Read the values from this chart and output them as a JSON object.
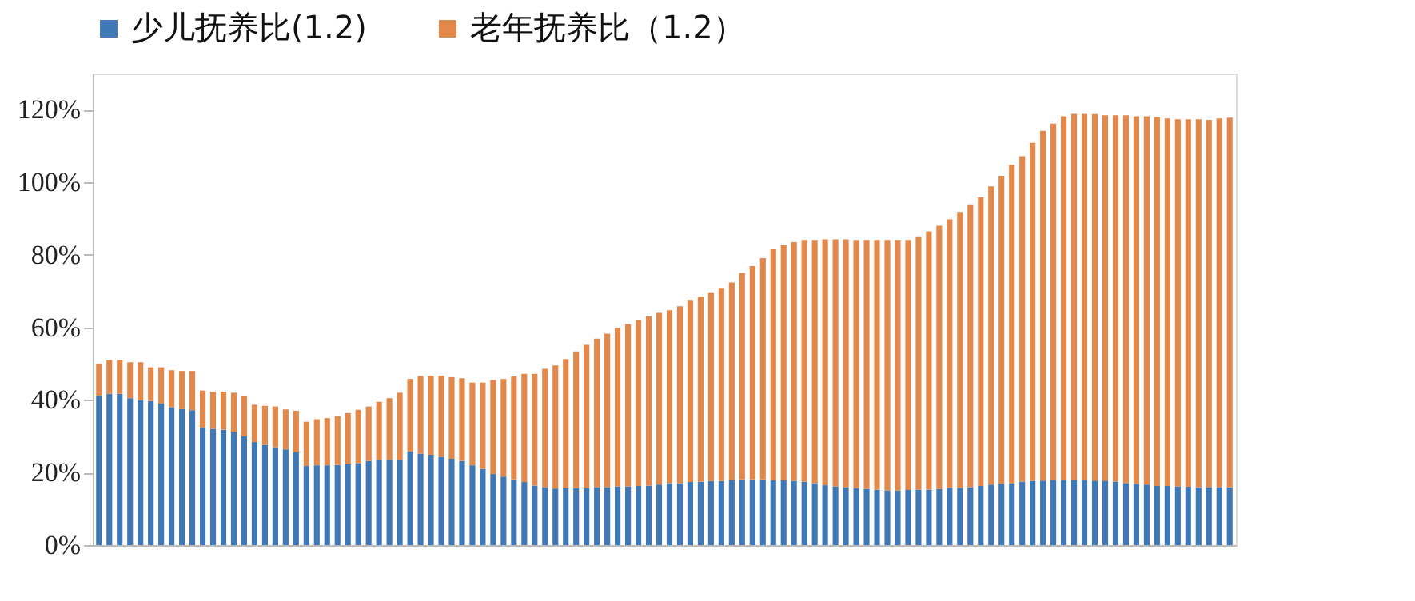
{
  "chart_data": {
    "type": "bar",
    "stacked": true,
    "legend": "top",
    "grid": false,
    "tick_labels": "y",
    "categories": [
      null,
      null,
      null,
      null,
      null,
      null,
      null,
      null,
      null,
      null,
      null,
      null,
      null,
      null,
      null,
      null,
      null,
      null,
      null,
      null,
      null,
      null,
      null,
      null,
      null,
      null,
      null,
      null,
      null,
      null,
      null,
      null,
      null,
      null,
      null,
      null,
      null,
      null,
      null,
      null,
      null,
      null,
      null,
      null,
      null,
      null,
      null,
      null,
      null,
      null,
      null,
      null,
      null,
      null,
      null,
      null,
      null,
      null,
      null,
      null,
      null,
      null,
      null,
      null,
      null,
      null,
      null,
      null,
      null,
      null,
      null,
      null,
      null,
      null,
      null,
      null,
      null,
      null,
      null,
      null,
      null,
      null,
      null,
      null,
      null,
      null,
      null,
      null,
      null,
      null,
      null,
      null,
      null,
      null,
      null,
      null,
      null,
      null,
      null,
      null,
      null,
      null,
      null,
      null,
      null,
      null,
      null,
      null,
      null,
      null
    ],
    "ylim": [
      0,
      130
    ],
    "yticks": [
      {
        "value": 0,
        "label": "0%"
      },
      {
        "value": 20,
        "label": "20%"
      },
      {
        "value": 40,
        "label": "40%"
      },
      {
        "value": 60,
        "label": "60%"
      },
      {
        "value": 80,
        "label": "80%"
      },
      {
        "value": 100,
        "label": "100%"
      },
      {
        "value": 120,
        "label": "120%"
      }
    ],
    "series": [
      {
        "name": "少儿抚养比(1.2)",
        "color": "#3e78b6",
        "values": [
          41.2,
          41.7,
          41.7,
          40.5,
          40,
          39.7,
          39,
          38,
          37.5,
          37.2,
          32.4,
          32,
          31.8,
          31.2,
          30,
          28.4,
          27.6,
          27,
          26.4,
          25.6,
          21.8,
          22,
          22,
          22.1,
          22.3,
          22.6,
          23.2,
          23.5,
          23.5,
          23.5,
          25.8,
          25.2,
          24.9,
          24.3,
          23.8,
          23.2,
          22,
          21,
          19.6,
          18.9,
          18.1,
          17.4,
          16.4,
          16,
          15.6,
          15.7,
          15.7,
          15.7,
          16,
          16,
          16.2,
          16.2,
          16.3,
          16.4,
          16.7,
          17.1,
          17.1,
          17.4,
          17.5,
          17.7,
          17.7,
          18,
          18.1,
          18.1,
          18.1,
          17.9,
          17.9,
          17.7,
          17.5,
          17.1,
          16.5,
          16.2,
          16,
          15.7,
          15.5,
          15.3,
          15.1,
          15.1,
          15.2,
          15.3,
          15.3,
          15.5,
          15.8,
          15.8,
          16,
          16.3,
          16.7,
          16.9,
          17.1,
          17.5,
          17.7,
          17.8,
          18,
          18,
          18,
          18,
          17.8,
          17.8,
          17.5,
          17.1,
          16.9,
          16.7,
          16.3,
          16.3,
          16.2,
          16.1,
          16,
          16,
          16,
          16
        ]
      },
      {
        "name": "老年抚养比（1.2）",
        "color": "#e2884a",
        "values": [
          8.8,
          9.3,
          9.3,
          9.9,
          10.4,
          9.3,
          10,
          10.2,
          10.5,
          10.8,
          10.2,
          10.3,
          10.5,
          10.8,
          11,
          10.3,
          10.8,
          11.2,
          11,
          11.4,
          12.2,
          12.7,
          13,
          13.5,
          14.1,
          14.7,
          15,
          16,
          17,
          18.5,
          20,
          21.4,
          21.8,
          22.4,
          22.5,
          22.8,
          22.8,
          23.8,
          25.9,
          26.9,
          28.4,
          29.8,
          30.8,
          32.6,
          33.9,
          35.6,
          37.7,
          39.5,
          40.9,
          42.3,
          43.7,
          44.7,
          45.8,
          46.6,
          47.3,
          47.6,
          48.7,
          50.2,
          51,
          52,
          53.2,
          54.4,
          56.9,
          58.8,
          61,
          63.6,
          64.8,
          65.8,
          66.6,
          67,
          67.8,
          68.1,
          68.3,
          68.4,
          68.6,
          68.8,
          69,
          69,
          68.9,
          69.8,
          71.2,
          72.5,
          74,
          76,
          77.9,
          79.6,
          82.2,
          84.9,
          87.7,
          89.7,
          93.2,
          96.4,
          98.2,
          100.2,
          100.9,
          100.9,
          101,
          100.7,
          101,
          101.4,
          101.3,
          101.5,
          101.7,
          101.3,
          101.2,
          101.3,
          101.4,
          101.2,
          101.6,
          101.8
        ]
      }
    ]
  }
}
